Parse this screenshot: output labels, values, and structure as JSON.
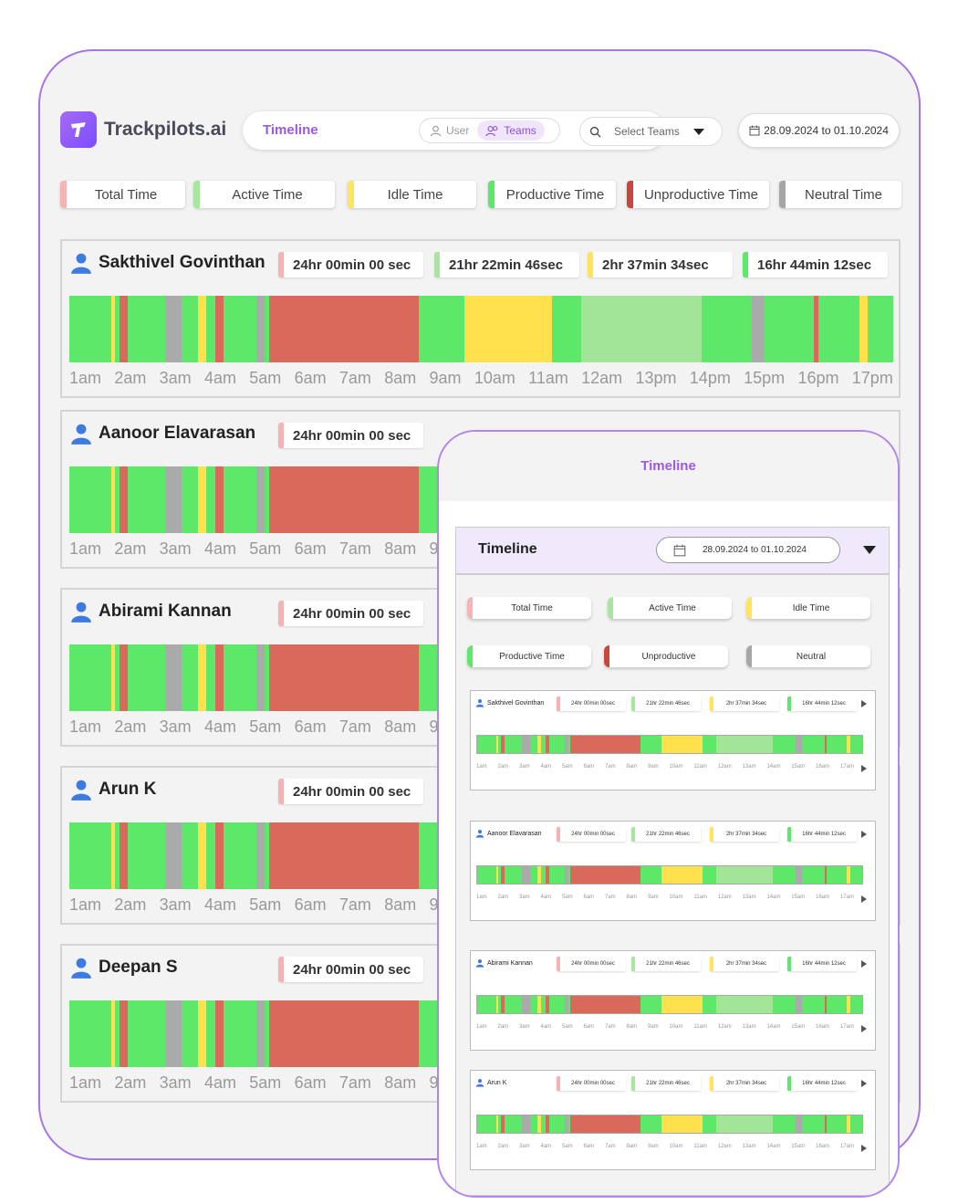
{
  "brand": {
    "name": "Trackpilots.ai"
  },
  "nav": {
    "title": "Timeline",
    "user_label": "User",
    "teams_label": "Teams"
  },
  "team_select": {
    "placeholder": "Select Teams"
  },
  "date_range": "28.09.2024 to 01.10.2024",
  "legend": [
    {
      "label": "Total Time",
      "color": "#f5b4b4"
    },
    {
      "label": "Active Time",
      "color": "#a8e6a0"
    },
    {
      "label": "Idle Time",
      "color": "#ffe45c"
    },
    {
      "label": "Productive Time",
      "color": "#5ee86a"
    },
    {
      "label": "Unproductive Time",
      "color": "#c9463d"
    },
    {
      "label": "Neutral Time",
      "color": "#a6a6a6"
    }
  ],
  "users": [
    {
      "name": "Sakthivel Govinthan",
      "stats": [
        "24hr 00min 00 sec",
        "21hr 22min 46sec",
        "2hr 37min 34sec",
        "16hr 44min 12sec"
      ]
    },
    {
      "name": "Aanoor Elavarasan",
      "stats": [
        "24hr 00min 00 sec"
      ]
    },
    {
      "name": "Abirami Kannan",
      "stats": [
        "24hr 00min 00 sec"
      ]
    },
    {
      "name": "Arun K",
      "stats": [
        "24hr 00min 00 sec"
      ]
    },
    {
      "name": "Deepan S",
      "stats": [
        "24hr 00min 00 sec"
      ]
    }
  ],
  "hours": [
    "1am",
    "2am",
    "3am",
    "4am",
    "5am",
    "6am",
    "7am",
    "8am",
    "9am",
    "10am",
    "11am",
    "12am",
    "13pm",
    "14pm",
    "15pm",
    "16pm",
    "17pm"
  ],
  "colors": {
    "productive": "#5ee86a",
    "idle": "#ffe14d",
    "unproductive": "#d9695a",
    "neutral": "#aaaaaa",
    "active": "#a3e596"
  },
  "timeline": [
    {
      "type": "productive",
      "value": 5
    },
    {
      "type": "idle",
      "value": 0.5
    },
    {
      "type": "productive",
      "value": 0.5
    },
    {
      "type": "unproductive",
      "value": 1
    },
    {
      "type": "productive",
      "value": 4.5
    },
    {
      "type": "neutral",
      "value": 2
    },
    {
      "type": "productive",
      "value": 2
    },
    {
      "type": "idle",
      "value": 1
    },
    {
      "type": "productive",
      "value": 1
    },
    {
      "type": "unproductive",
      "value": 1
    },
    {
      "type": "productive",
      "value": 4
    },
    {
      "type": "neutral",
      "value": 1
    },
    {
      "type": "productive",
      "value": 0.5
    },
    {
      "type": "unproductive",
      "value": 18
    },
    {
      "type": "productive",
      "value": 5.5
    },
    {
      "type": "idle",
      "value": 10.5
    },
    {
      "type": "productive",
      "value": 3.5
    },
    {
      "type": "active",
      "value": 14.5
    },
    {
      "type": "productive",
      "value": 6
    },
    {
      "type": "neutral",
      "value": 1.5
    },
    {
      "type": "productive",
      "value": 6
    },
    {
      "type": "unproductive",
      "value": 0.5
    },
    {
      "type": "productive",
      "value": 5
    },
    {
      "type": "idle",
      "value": 1
    },
    {
      "type": "productive",
      "value": 3
    }
  ],
  "mobile": {
    "title": "Timeline",
    "panel_title": "Timeline",
    "date_range": "28.09.2024 to 01.10.2024",
    "legend": [
      {
        "label": "Total Time",
        "color": "#f5b4b4"
      },
      {
        "label": "Active Time",
        "color": "#a8e6a0"
      },
      {
        "label": "Idle Time",
        "color": "#ffe45c"
      },
      {
        "label": "Productive Time",
        "color": "#5ee86a"
      },
      {
        "label": "Unproductive",
        "color": "#c9463d"
      },
      {
        "label": "Neutral",
        "color": "#a6a6a6"
      }
    ],
    "users": [
      {
        "name": "Sakthivel Govinthan",
        "stats": [
          "24hr 00min 00sec",
          "21hr 22min 46sec",
          "2hr 37min 34sec",
          "16hr 44min 12sec"
        ]
      },
      {
        "name": "Aanoor Elavarasan",
        "stats": [
          "24hr 00min 00sec",
          "21hr 22min 46sec",
          "2hr 37min 34sec",
          "16hr 44min 12sec"
        ]
      },
      {
        "name": "Abirami Kannan",
        "stats": [
          "24hr 00min 00sec",
          "21hr 22min 46sec",
          "2hr 37min 34sec",
          "16hr 44min 12sec"
        ]
      },
      {
        "name": "Arun K",
        "stats": [
          "24hr 00min 00sec",
          "21hr 22min 46sec",
          "2hr 37min 34sec",
          "16hr 44min 12sec"
        ]
      }
    ],
    "hours": [
      "1am",
      "2am",
      "3am",
      "4am",
      "5am",
      "6am",
      "7am",
      "8am",
      "9am",
      "10am",
      "11am",
      "12am",
      "13am",
      "14am",
      "15am",
      "16am",
      "17am"
    ]
  }
}
